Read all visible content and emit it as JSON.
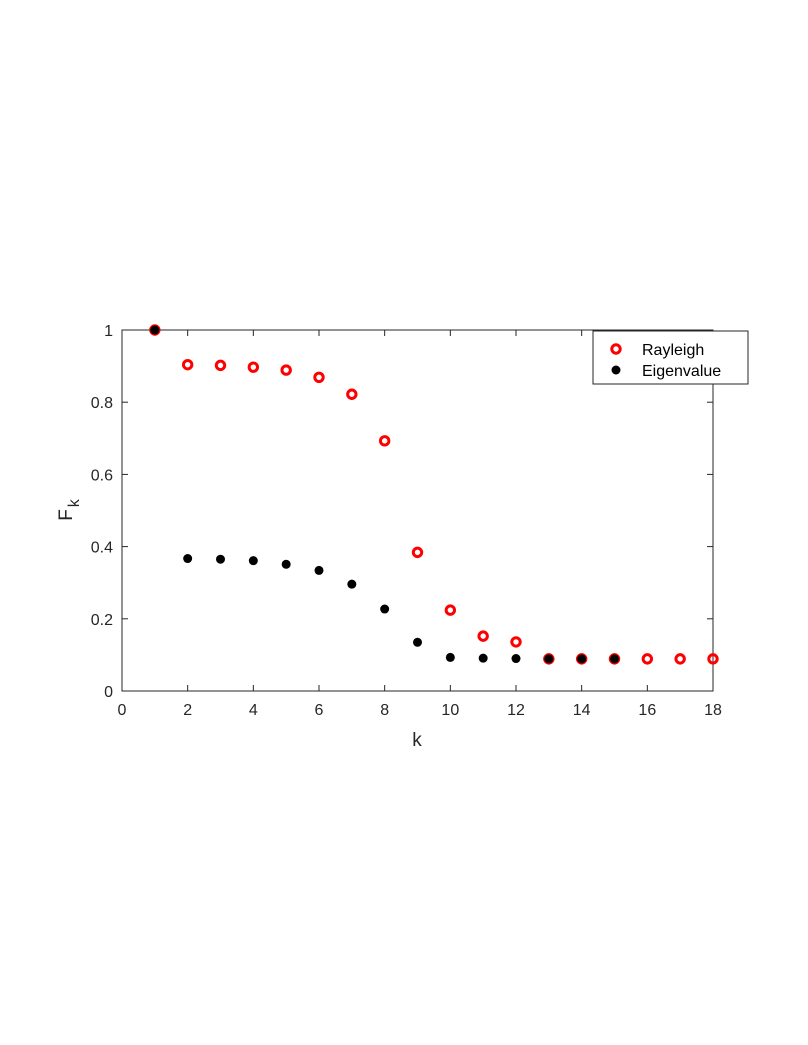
{
  "chart_data": {
    "type": "scatter",
    "title": "",
    "xlabel": "k",
    "ylabel": {
      "main": "F",
      "sub": "k"
    },
    "xlim": [
      0,
      18
    ],
    "ylim": [
      0,
      1
    ],
    "xticks": [
      0,
      2,
      4,
      6,
      8,
      10,
      12,
      14,
      16,
      18
    ],
    "yticks": [
      0,
      0.2,
      0.4,
      0.6,
      0.8,
      1
    ],
    "ytick_labels": [
      "0",
      "0.2",
      "0.4",
      "0.6",
      "0.8",
      "1"
    ],
    "grid": false,
    "legend_position": "top-right",
    "series": [
      {
        "name": "Rayleigh",
        "marker": "open-circle",
        "color": "#ff0000",
        "x": [
          1,
          2,
          3,
          4,
          5,
          6,
          7,
          8,
          9,
          10,
          11,
          12,
          13,
          14,
          15,
          16,
          17,
          18
        ],
        "y": [
          1.0,
          0.904,
          0.902,
          0.897,
          0.889,
          0.869,
          0.822,
          0.693,
          0.384,
          0.224,
          0.152,
          0.136,
          0.089,
          0.089,
          0.089,
          0.089,
          0.089,
          0.089
        ]
      },
      {
        "name": "Eigenvalue",
        "marker": "filled-circle",
        "color": "#000000",
        "x": [
          1,
          2,
          3,
          4,
          5,
          6,
          7,
          8,
          9,
          10,
          11,
          12,
          13,
          14,
          15
        ],
        "y": [
          1.0,
          0.367,
          0.365,
          0.361,
          0.351,
          0.334,
          0.296,
          0.227,
          0.135,
          0.093,
          0.091,
          0.09,
          0.089,
          0.089,
          0.089
        ]
      }
    ]
  }
}
